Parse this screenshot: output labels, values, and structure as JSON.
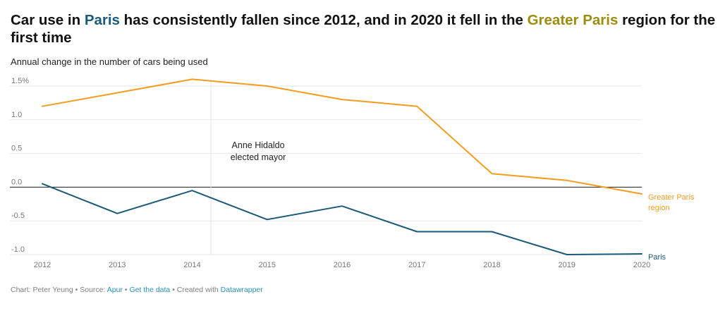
{
  "header": {
    "title_part1": "Car use in ",
    "title_paris": "Paris",
    "title_part2": " has consistently fallen since 2012, and in 2020 it fell in the ",
    "title_greater": "Greater Paris",
    "title_part3": " region for the first time",
    "subtitle": "Annual change in the number of cars being used"
  },
  "footer": {
    "prefix": "Chart: Peter Yeung • Source: ",
    "source_link": "Apur",
    "sep1": " • ",
    "data_link": "Get the data",
    "sep2": " • Created with ",
    "tool_link": "Datawrapper"
  },
  "colors": {
    "paris": "#1b5a78",
    "greater_paris": "#f39c1e",
    "paris_title": "#1b5a78",
    "greater_title": "#9c8d0f",
    "link": "#2a8fb0"
  },
  "chart_data": {
    "type": "line",
    "x": [
      2012,
      2013,
      2014,
      2015,
      2016,
      2017,
      2018,
      2019,
      2020
    ],
    "series": [
      {
        "name": "Greater Paris region",
        "label_lines": [
          "Greater Paris",
          "region"
        ],
        "color": "#f39c1e",
        "values": [
          1.2,
          1.4,
          1.6,
          1.5,
          1.3,
          1.2,
          0.2,
          0.1,
          -0.1
        ]
      },
      {
        "name": "Paris",
        "label_lines": [
          "Paris"
        ],
        "color": "#1b5a78",
        "values": [
          0.05,
          -0.39,
          -0.05,
          -0.48,
          -0.28,
          -0.66,
          -0.66,
          -1.0,
          -0.99
        ]
      }
    ],
    "yticks": [
      1.5,
      1.0,
      0.5,
      0.0,
      -0.5,
      -1.0
    ],
    "ytick_labels": [
      "1.5%",
      "1.0",
      "0.5",
      "0.0",
      "-0.5",
      "-1.0"
    ],
    "xtick_labels": [
      "2012",
      "2013",
      "2014",
      "2015",
      "2016",
      "2017",
      "2018",
      "2019",
      "2020"
    ],
    "ylim": [
      -1.0,
      1.5
    ],
    "xlim": [
      2012,
      2020
    ],
    "grid": true,
    "annotation": {
      "x": 2014.25,
      "lines": [
        "Anne Hidaldo",
        "elected mayor"
      ]
    }
  }
}
